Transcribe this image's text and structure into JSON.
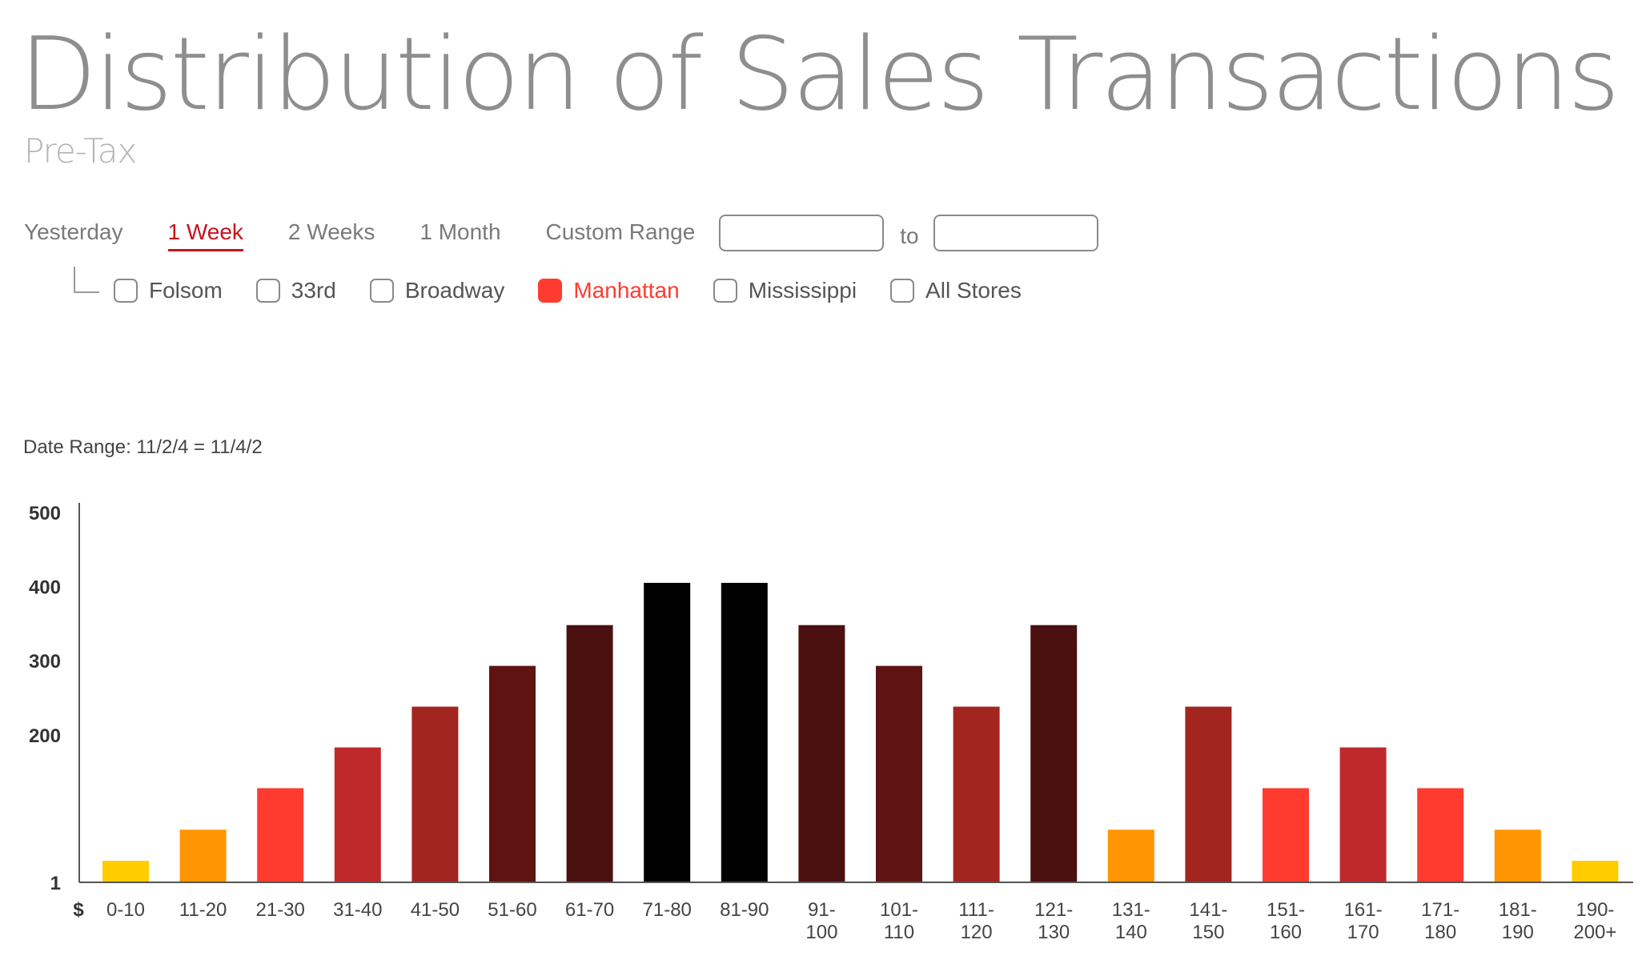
{
  "header": {
    "title": "Distribution of Sales Transactions",
    "subtitle": "Pre-Tax"
  },
  "range_tabs": [
    {
      "label": "Yesterday",
      "active": false
    },
    {
      "label": "1 Week",
      "active": true
    },
    {
      "label": "2 Weeks",
      "active": false
    },
    {
      "label": "1 Month",
      "active": false
    },
    {
      "label": "Custom Range",
      "active": false
    }
  ],
  "custom_range": {
    "from_value": "",
    "to_label": "to",
    "to_value": ""
  },
  "stores": [
    {
      "label": "Folsom",
      "checked": false
    },
    {
      "label": "33rd",
      "checked": false
    },
    {
      "label": "Broadway",
      "checked": false
    },
    {
      "label": "Manhattan",
      "checked": true
    },
    {
      "label": "Mississippi",
      "checked": false
    },
    {
      "label": "All Stores",
      "checked": false
    }
  ],
  "colors": {
    "accent": "#c8141e",
    "checked": "#ff3b30",
    "title": "#8e8e8e"
  },
  "date_range": "Date Range: 11/2/4 = 11/4/2",
  "chart_data": {
    "type": "bar",
    "currency_label": "$",
    "categories": [
      "0-10",
      "11-20",
      "21-30",
      "31-40",
      "41-50",
      "51-60",
      "61-70",
      "71-80",
      "81-90",
      "91-100",
      "101-110",
      "111-120",
      "121-130",
      "131-140",
      "141-150",
      "151-160",
      "161-170",
      "171-180",
      "181-190",
      "190-200+"
    ],
    "category_lines": [
      [
        "0-10"
      ],
      [
        "11-20"
      ],
      [
        "21-30"
      ],
      [
        "31-40"
      ],
      [
        "41-50"
      ],
      [
        "51-60"
      ],
      [
        "61-70"
      ],
      [
        "71-80"
      ],
      [
        "81-90"
      ],
      [
        "91-",
        "100"
      ],
      [
        "101-",
        "110"
      ],
      [
        "111-",
        "120"
      ],
      [
        "121-",
        "130"
      ],
      [
        "131-",
        "140"
      ],
      [
        "141-",
        "150"
      ],
      [
        "151-",
        "160"
      ],
      [
        "161-",
        "170"
      ],
      [
        "171-",
        "180"
      ],
      [
        "181-",
        "190"
      ],
      [
        "190-",
        "200+"
      ]
    ],
    "values": [
      30,
      72,
      128,
      183,
      238,
      293,
      348,
      405,
      405,
      348,
      293,
      238,
      348,
      72,
      238,
      128,
      183,
      128,
      72,
      30
    ],
    "colors": [
      "#ffcc00",
      "#ff9500",
      "#ff3b30",
      "#c0292b",
      "#a3251f",
      "#5e1412",
      "#4b1111",
      "#000000",
      "#000000",
      "#4b1111",
      "#5e1412",
      "#a3251f",
      "#4b1111",
      "#ff9500",
      "#a3251f",
      "#ff3b30",
      "#c0292b",
      "#ff3b30",
      "#ff9500",
      "#ffcc00"
    ],
    "y_ticks": [
      1,
      200,
      300,
      400,
      500
    ],
    "ylim": [
      1,
      500
    ],
    "grid": false,
    "legend": false
  }
}
